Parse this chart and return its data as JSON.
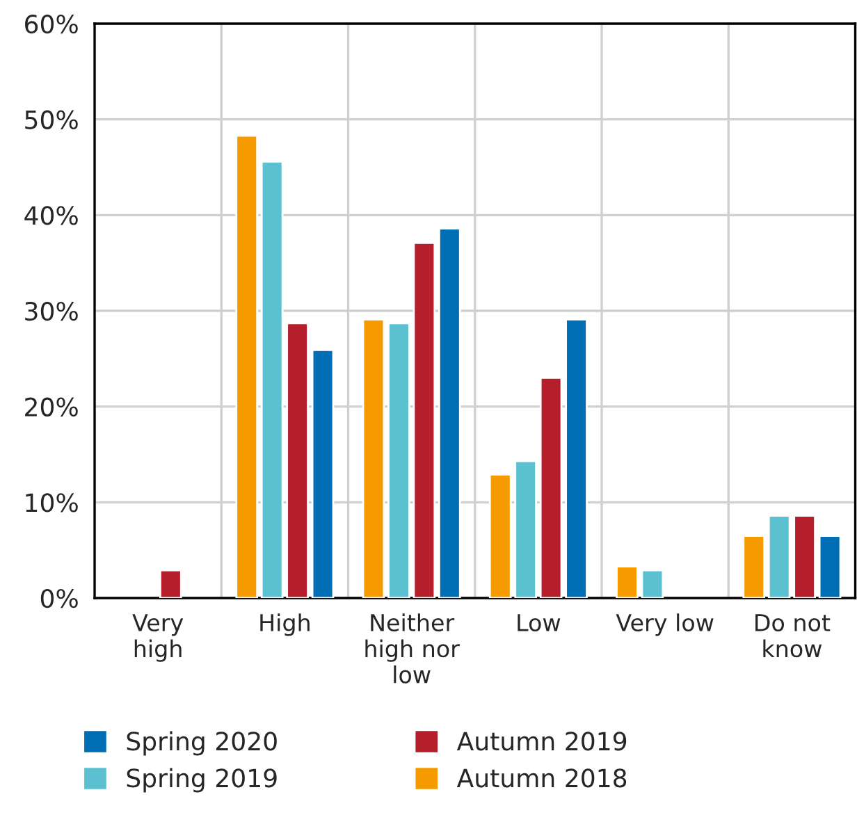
{
  "chart_data": {
    "type": "bar",
    "categories": [
      "Very high",
      "High",
      "Neither high nor low",
      "Low",
      "Very low",
      "Do not know"
    ],
    "series": [
      {
        "name": "Autumn 2018",
        "color": "#f59b00",
        "values": [
          null,
          48.3,
          29.1,
          12.9,
          3.3,
          6.5
        ]
      },
      {
        "name": "Spring 2019",
        "color": "#5bc0cf",
        "values": [
          null,
          45.6,
          28.7,
          14.3,
          2.9,
          8.6
        ]
      },
      {
        "name": "Autumn 2019",
        "color": "#b41f2b",
        "values": [
          2.9,
          28.7,
          37.1,
          23.0,
          null,
          8.6
        ]
      },
      {
        "name": "Spring 2020",
        "color": "#006eb5",
        "values": [
          null,
          25.9,
          38.6,
          29.1,
          null,
          6.5
        ]
      }
    ],
    "ylim": [
      0,
      60
    ],
    "yticks": [
      {
        "value": 0,
        "label": "0%"
      },
      {
        "value": 10,
        "label": "10%"
      },
      {
        "value": 20,
        "label": "20%"
      },
      {
        "value": 30,
        "label": "30%"
      },
      {
        "value": 40,
        "label": "40%"
      },
      {
        "value": 50,
        "label": "50%"
      },
      {
        "value": 60,
        "label": "60%"
      }
    ],
    "grid": true,
    "legend": "bottom"
  }
}
